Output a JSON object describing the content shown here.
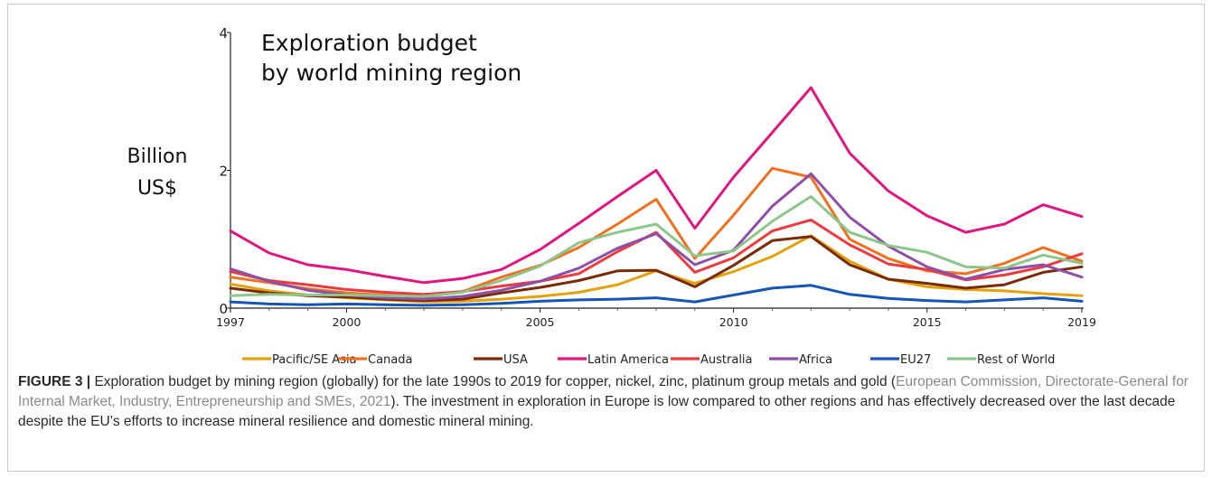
{
  "chart_data": {
    "type": "line",
    "title": "Exploration budget\nby world mining region",
    "ylabel": "Billion\nUS$",
    "xlabel": "",
    "xlim": [
      1997,
      2019
    ],
    "ylim": [
      0,
      4
    ],
    "y_ticks": [
      0,
      2,
      4
    ],
    "x_ticks": [
      1997,
      2000,
      2005,
      2010,
      2015,
      2019
    ],
    "grid": false,
    "legend_position": "bottom",
    "x": [
      1997,
      1998,
      1999,
      2000,
      2001,
      2002,
      2003,
      2004,
      2005,
      2006,
      2007,
      2008,
      2009,
      2010,
      2011,
      2012,
      2013,
      2014,
      2015,
      2016,
      2017,
      2018,
      2019
    ],
    "series": [
      {
        "name": "Pacific/SE Asia",
        "color": "#E3A20B",
        "values": [
          0.35,
          0.25,
          0.19,
          0.15,
          0.12,
          0.09,
          0.1,
          0.13,
          0.17,
          0.23,
          0.34,
          0.54,
          0.36,
          0.53,
          0.75,
          1.05,
          0.68,
          0.42,
          0.31,
          0.27,
          0.25,
          0.21,
          0.18
        ]
      },
      {
        "name": "Canada",
        "color": "#F07020",
        "values": [
          0.45,
          0.37,
          0.28,
          0.22,
          0.19,
          0.16,
          0.24,
          0.45,
          0.62,
          0.88,
          1.22,
          1.58,
          0.72,
          1.35,
          2.03,
          1.9,
          1.0,
          0.72,
          0.54,
          0.5,
          0.65,
          0.88,
          0.68
        ]
      },
      {
        "name": "USA",
        "color": "#7A2A06",
        "values": [
          0.29,
          0.22,
          0.18,
          0.16,
          0.13,
          0.11,
          0.13,
          0.22,
          0.3,
          0.4,
          0.54,
          0.55,
          0.31,
          0.62,
          0.98,
          1.04,
          0.63,
          0.42,
          0.36,
          0.29,
          0.34,
          0.52,
          0.6
        ]
      },
      {
        "name": "Latin America",
        "color": "#E0157F",
        "values": [
          1.12,
          0.8,
          0.63,
          0.56,
          0.46,
          0.37,
          0.43,
          0.56,
          0.85,
          1.23,
          1.62,
          2.0,
          1.16,
          1.9,
          2.55,
          3.2,
          2.25,
          1.7,
          1.34,
          1.1,
          1.22,
          1.5,
          1.33
        ]
      },
      {
        "name": "Australia",
        "color": "#EC3B3F",
        "values": [
          0.53,
          0.4,
          0.34,
          0.27,
          0.23,
          0.2,
          0.24,
          0.32,
          0.39,
          0.5,
          0.82,
          1.1,
          0.52,
          0.73,
          1.12,
          1.28,
          0.92,
          0.64,
          0.56,
          0.41,
          0.48,
          0.6,
          0.79
        ]
      },
      {
        "name": "Africa",
        "color": "#8E4FA6",
        "values": [
          0.57,
          0.39,
          0.26,
          0.19,
          0.15,
          0.13,
          0.17,
          0.26,
          0.39,
          0.58,
          0.87,
          1.08,
          0.63,
          0.84,
          1.48,
          1.95,
          1.32,
          0.9,
          0.6,
          0.42,
          0.56,
          0.63,
          0.45
        ]
      },
      {
        "name": "EU27",
        "color": "#1555B5",
        "values": [
          0.09,
          0.06,
          0.05,
          0.06,
          0.05,
          0.04,
          0.05,
          0.07,
          0.1,
          0.12,
          0.13,
          0.15,
          0.09,
          0.19,
          0.29,
          0.33,
          0.2,
          0.14,
          0.11,
          0.09,
          0.12,
          0.15,
          0.1
        ]
      },
      {
        "name": "Rest of World",
        "color": "#8DC68A",
        "values": [
          0.18,
          0.2,
          0.19,
          0.19,
          0.18,
          0.17,
          0.23,
          0.4,
          0.61,
          0.95,
          1.1,
          1.22,
          0.76,
          0.83,
          1.26,
          1.62,
          1.1,
          0.91,
          0.81,
          0.6,
          0.58,
          0.77,
          0.65
        ]
      }
    ]
  },
  "caption": {
    "label": "FIGURE 3 |",
    "text_before": " Exploration budget by mining region (globally) for the late 1990s to 2019 for copper, nickel, zinc, platinum group metals and gold (",
    "citation": "European Commission, Directorate-General for Internal Market, Industry, Entrepreneurship and SMEs, 2021",
    "text_after": "). The investment in exploration in Europe is low compared to other regions and has effectively decreased over the last decade despite the EU’s efforts to increase mineral resilience and domestic mineral mining."
  }
}
